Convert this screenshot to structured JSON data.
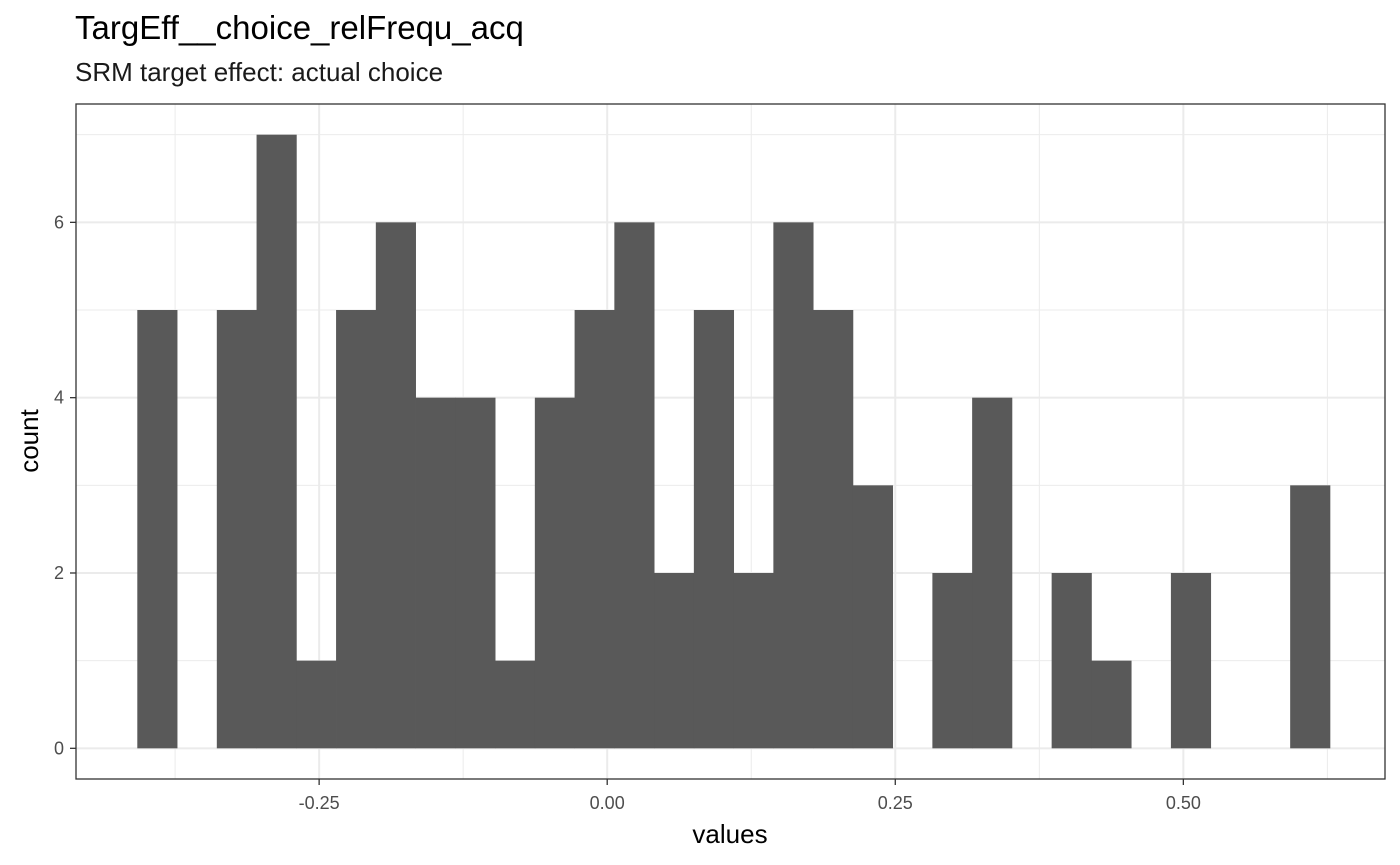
{
  "chart_data": {
    "type": "bar",
    "title": "TargEff__choice_relFrequ_acq",
    "subtitle": "SRM target effect: actual choice",
    "xlabel": "values",
    "ylabel": "count",
    "bin_width": 0.0345,
    "bin_start": -0.4078,
    "counts": [
      5,
      0,
      5,
      7,
      1,
      5,
      6,
      4,
      4,
      1,
      4,
      5,
      6,
      2,
      5,
      2,
      6,
      5,
      3,
      0,
      2,
      4,
      0,
      2,
      1,
      0,
      2,
      0,
      0,
      3
    ],
    "xlim": [
      -0.461,
      0.675
    ],
    "ylim": [
      -0.35,
      7.35
    ],
    "x_ticks": [
      -0.25,
      0.0,
      0.25,
      0.5
    ],
    "x_tick_labels": [
      "-0.25",
      "0.00",
      "0.25",
      "0.50"
    ],
    "y_ticks": [
      0,
      2,
      4,
      6
    ],
    "y_tick_labels": [
      "0",
      "2",
      "4",
      "6"
    ],
    "bar_color": "#595959",
    "grid": true,
    "legend": "none"
  }
}
